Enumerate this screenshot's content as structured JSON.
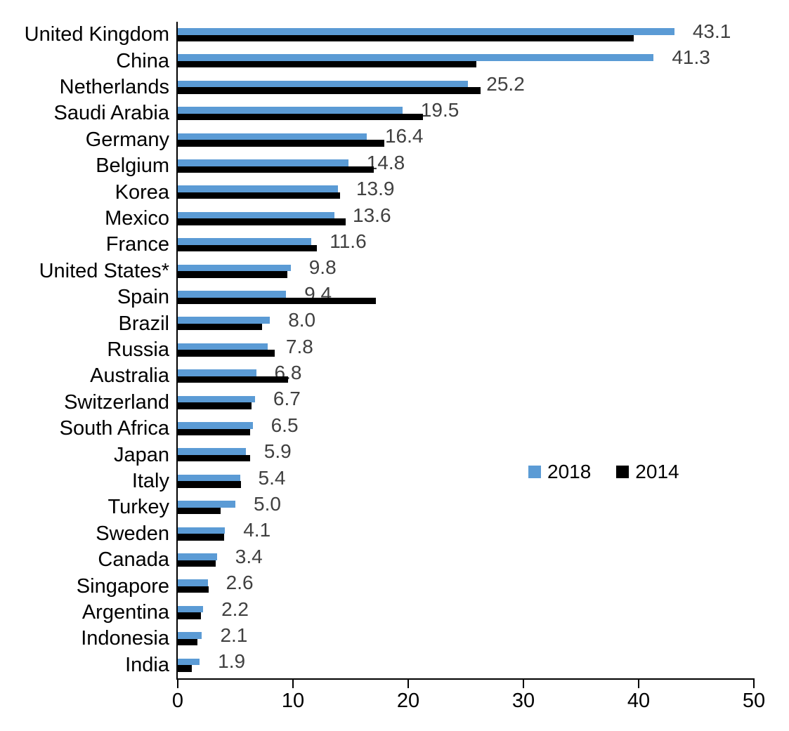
{
  "chart_data": {
    "type": "bar",
    "orientation": "horizontal",
    "title": "",
    "xlabel": "",
    "ylabel": "",
    "xlim": [
      0,
      50
    ],
    "x_ticks": [
      0,
      10,
      20,
      30,
      40,
      50
    ],
    "x_tick_labels": [
      "0",
      "10",
      "20",
      "30",
      "40",
      "50"
    ],
    "grid": false,
    "legend_position": "middle-right",
    "categories": [
      "United Kingdom",
      "China",
      "Netherlands",
      "Saudi Arabia",
      "Germany",
      "Belgium",
      "Korea",
      "Mexico",
      "France",
      "United States*",
      "Spain",
      "Brazil",
      "Russia",
      "Australia",
      "Switzerland",
      "South Africa",
      "Japan",
      "Italy",
      "Turkey",
      "Sweden",
      "Canada",
      "Singapore",
      "Argentina",
      "Indonesia",
      "India"
    ],
    "series": [
      {
        "name": "2018",
        "color": "#5B9BD5",
        "values": [
          43.1,
          41.3,
          25.2,
          19.5,
          16.4,
          14.8,
          13.9,
          13.6,
          11.6,
          9.8,
          9.4,
          8.0,
          7.8,
          6.8,
          6.7,
          6.5,
          5.9,
          5.4,
          5.0,
          4.1,
          3.4,
          2.6,
          2.2,
          2.1,
          1.9
        ]
      },
      {
        "name": "2014",
        "color": "#000000",
        "values": [
          39.6,
          25.9,
          26.3,
          21.3,
          17.9,
          17.0,
          14.1,
          14.6,
          12.1,
          9.5,
          17.2,
          7.3,
          8.4,
          9.6,
          6.4,
          6.3,
          6.3,
          5.5,
          3.7,
          4.0,
          3.3,
          2.7,
          2.0,
          1.7,
          1.2
        ]
      }
    ],
    "value_labels": [
      "43.1",
      "41.3",
      "25.2",
      "19.5",
      "16.4",
      "14.8",
      "13.9",
      "13.6",
      "11.6",
      "9.8",
      "9.4",
      "8.0",
      "7.8",
      "6.8",
      "6.7",
      "6.5",
      "5.9",
      "5.4",
      "5.0",
      "4.1",
      "3.4",
      "2.6",
      "2.2",
      "2.1",
      "1.9"
    ]
  },
  "colors": {
    "series_2018": "#5B9BD5",
    "series_2014": "#000000",
    "value_label": "#404040",
    "axis": "#000000",
    "background": "#FFFFFF"
  }
}
